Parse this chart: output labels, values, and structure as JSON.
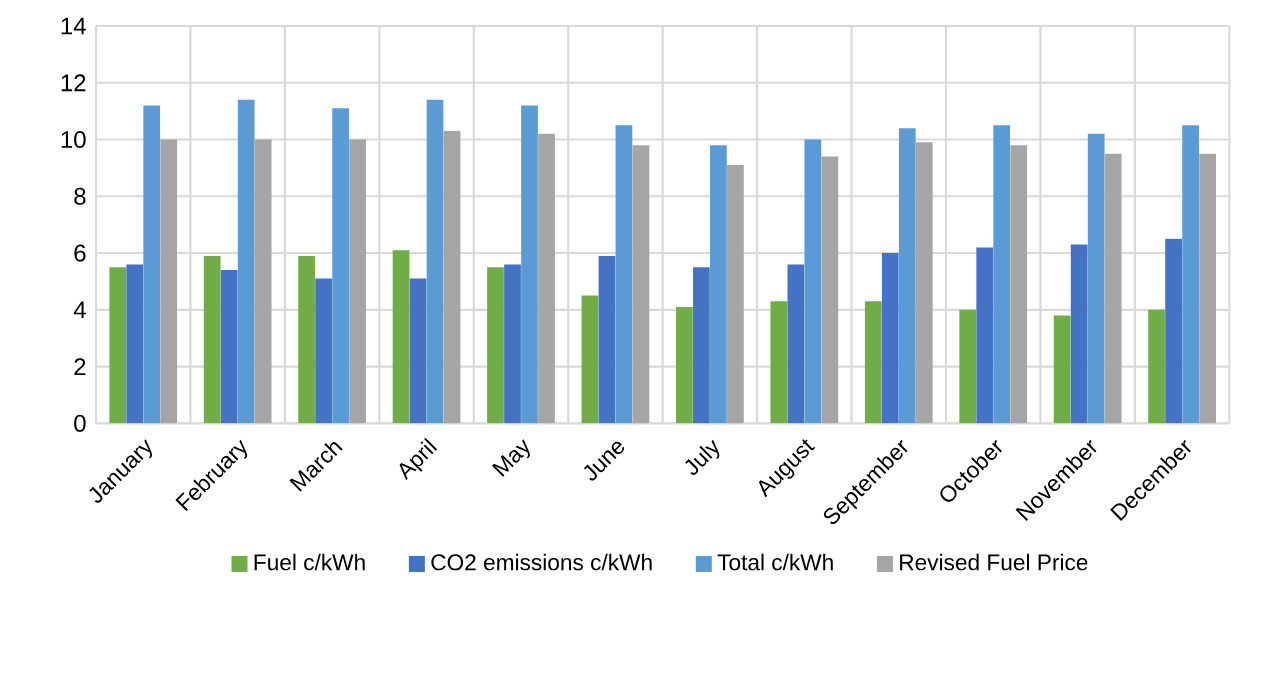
{
  "chart_data": {
    "type": "bar",
    "categories": [
      "January",
      "February",
      "March",
      "April",
      "May",
      "June",
      "July",
      "August",
      "September",
      "October",
      "November",
      "December"
    ],
    "series": [
      {
        "name": "Fuel c/kWh",
        "color": "#70ad47",
        "values": [
          5.5,
          5.9,
          5.9,
          6.1,
          5.5,
          4.5,
          4.1,
          4.3,
          4.3,
          4.0,
          3.8,
          4.0
        ]
      },
      {
        "name": "CO2 emissions c/kWh",
        "color": "#4472c4",
        "values": [
          5.6,
          5.4,
          5.1,
          5.1,
          5.6,
          5.9,
          5.5,
          5.6,
          6.0,
          6.2,
          6.3,
          6.5
        ]
      },
      {
        "name": "Total c/kWh",
        "color": "#5b9bd5",
        "values": [
          11.2,
          11.4,
          11.1,
          11.4,
          11.2,
          10.5,
          9.8,
          10.0,
          10.4,
          10.5,
          10.2,
          10.5
        ]
      },
      {
        "name": "Revised Fuel Price",
        "color": "#a5a5a5",
        "values": [
          10.0,
          10.0,
          10.0,
          10.3,
          10.2,
          9.8,
          9.1,
          9.4,
          9.9,
          9.8,
          9.5,
          9.5
        ]
      }
    ],
    "ylim": [
      0,
      14
    ],
    "yticks": [
      0,
      2,
      4,
      6,
      8,
      10,
      12,
      14
    ],
    "grid": true,
    "legend": "bottom"
  }
}
